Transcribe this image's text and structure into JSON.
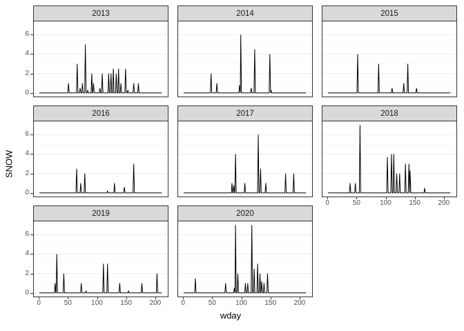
{
  "chart_data": {
    "type": "line",
    "title": "",
    "xlabel": "wday",
    "ylabel": "SNOW",
    "facet_variable": "year",
    "facet_layout": {
      "ncol": 3,
      "nrow": 3,
      "empty_cells": [
        "row3-col3"
      ]
    },
    "x_ticks": [
      0,
      50,
      100,
      150,
      200
    ],
    "y_ticks": [
      0,
      2,
      4,
      6
    ],
    "y_minor_ticks": [
      1,
      3,
      5,
      7
    ],
    "x_range": [
      -8.5,
      221.5
    ],
    "y_range": [
      -0.37,
      7.37
    ],
    "x_data_range": [
      1,
      211
    ],
    "grid": "horizontal-only",
    "legend": "none",
    "x_axis_on_facets": [
      "2018",
      "2019",
      "2020"
    ],
    "series_note": "each facet is SNOW vs wday; value is 0 except at spike points [wday, SNOW]",
    "facets": [
      {
        "label": "2013",
        "spikes": [
          [
            51,
            1
          ],
          [
            66,
            3
          ],
          [
            71,
            0.5
          ],
          [
            75,
            1
          ],
          [
            80,
            5
          ],
          [
            84,
            0.3
          ],
          [
            91,
            2
          ],
          [
            94,
            1
          ],
          [
            105,
            0.5
          ],
          [
            109,
            2
          ],
          [
            120,
            2
          ],
          [
            124,
            2
          ],
          [
            128,
            2.5
          ],
          [
            133,
            2
          ],
          [
            137,
            2.5
          ],
          [
            141,
            1
          ],
          [
            149,
            2.5
          ],
          [
            153,
            0.3
          ],
          [
            163,
            1
          ],
          [
            171,
            1
          ]
        ]
      },
      {
        "label": "2014",
        "spikes": [
          [
            48,
            2
          ],
          [
            58,
            1
          ],
          [
            97,
            0.8
          ],
          [
            99,
            6
          ],
          [
            117,
            0.5
          ],
          [
            123,
            4.5
          ],
          [
            149,
            4
          ],
          [
            151,
            0.3
          ]
        ]
      },
      {
        "label": "2015",
        "spikes": [
          [
            52,
            4
          ],
          [
            88,
            3
          ],
          [
            111,
            0.5
          ],
          [
            131,
            1
          ],
          [
            138,
            3
          ],
          [
            153,
            0.5
          ]
        ]
      },
      {
        "label": "2016",
        "spikes": [
          [
            65,
            2.5
          ],
          [
            72,
            1
          ],
          [
            79,
            2
          ],
          [
            118,
            0.2
          ],
          [
            130,
            1
          ],
          [
            147,
            0.6
          ],
          [
            163,
            3
          ]
        ]
      },
      {
        "label": "2017",
        "spikes": [
          [
            84,
            1
          ],
          [
            87,
            0.8
          ],
          [
            90,
            4
          ],
          [
            106,
            1
          ],
          [
            129,
            6
          ],
          [
            133,
            2.5
          ],
          [
            142,
            1
          ],
          [
            176,
            2
          ],
          [
            190,
            2
          ]
        ]
      },
      {
        "label": "2018",
        "spikes": [
          [
            39,
            1
          ],
          [
            48,
            1
          ],
          [
            56,
            7
          ],
          [
            103,
            3.7
          ],
          [
            110,
            4
          ],
          [
            114,
            4
          ],
          [
            119,
            2
          ],
          [
            124,
            2
          ],
          [
            134,
            3
          ],
          [
            140,
            3
          ],
          [
            142,
            2.3
          ],
          [
            167,
            0.5
          ]
        ]
      },
      {
        "label": "2019",
        "spikes": [
          [
            28,
            1
          ],
          [
            31,
            4
          ],
          [
            43,
            2
          ],
          [
            73,
            1
          ],
          [
            81,
            0.2
          ],
          [
            111,
            3
          ],
          [
            118,
            3
          ],
          [
            139,
            1
          ],
          [
            154,
            0.2
          ],
          [
            177,
            1
          ],
          [
            203,
            2
          ]
        ]
      },
      {
        "label": "2020",
        "spikes": [
          [
            21,
            1.5
          ],
          [
            73,
            1
          ],
          [
            88,
            0.5
          ],
          [
            90,
            7
          ],
          [
            94,
            2
          ],
          [
            107,
            1
          ],
          [
            111,
            1
          ],
          [
            118,
            7
          ],
          [
            122,
            2.5
          ],
          [
            128,
            3
          ],
          [
            132,
            2
          ],
          [
            135,
            1.2
          ],
          [
            139,
            1
          ],
          [
            145,
            2
          ]
        ]
      }
    ]
  },
  "colors": {
    "background": "#ffffff",
    "strip_bg": "#d9d9d9",
    "strip_border": "#333333",
    "panel_border": "#333333",
    "grid_major": "#ebebeb",
    "grid_minor": "#f4f4f4",
    "line": "#000000",
    "tick_text": "#4d4d4d",
    "tick_mark": "#333333",
    "axis_title": "#000000"
  }
}
